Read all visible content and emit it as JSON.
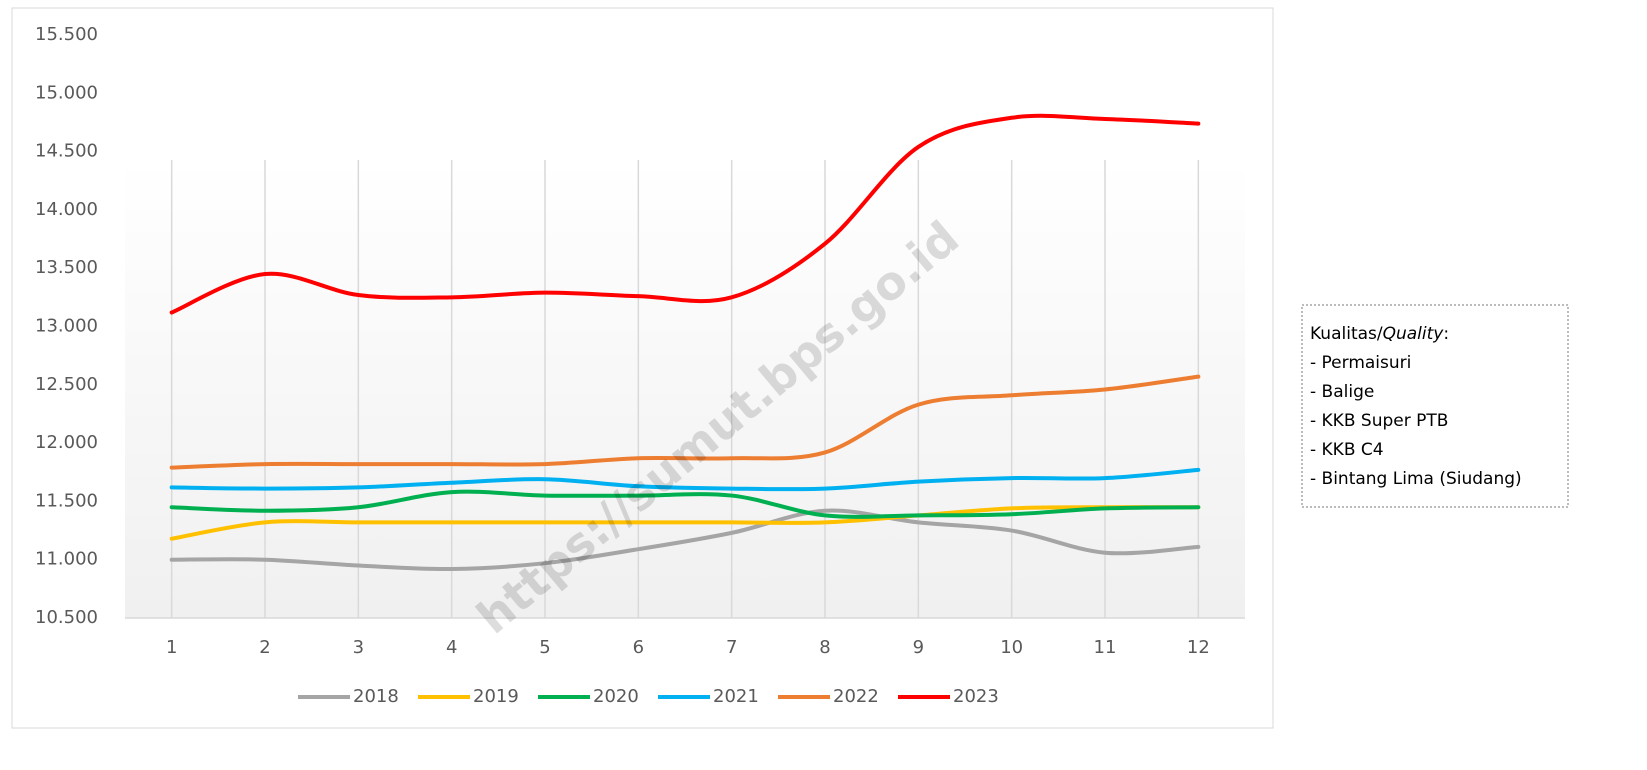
{
  "chart_data": {
    "type": "line",
    "x": [
      1,
      2,
      3,
      4,
      5,
      6,
      7,
      8,
      9,
      10,
      11,
      12
    ],
    "xlim": [
      0.5,
      12.5
    ],
    "xticks": [
      1,
      2,
      3,
      4,
      5,
      6,
      7,
      8,
      9,
      10,
      11,
      12
    ],
    "ylim": [
      10500,
      15500
    ],
    "yticks": [
      {
        "value": 10500,
        "label": "10.500"
      },
      {
        "value": 11000,
        "label": "11.000"
      },
      {
        "value": 11500,
        "label": "11.500"
      },
      {
        "value": 12000,
        "label": "12.000"
      },
      {
        "value": 12500,
        "label": "12.500"
      },
      {
        "value": 13000,
        "label": "13.000"
      },
      {
        "value": 13500,
        "label": "13.500"
      },
      {
        "value": 14000,
        "label": "14.000"
      },
      {
        "value": 14500,
        "label": "14.500"
      },
      {
        "value": 15000,
        "label": "15.000"
      },
      {
        "value": 15500,
        "label": "15.500"
      }
    ],
    "grid": "vertical",
    "smooth": true,
    "legend": "bottom",
    "series": [
      {
        "name": "2018",
        "color": "#a5a5a5",
        "values": [
          11000,
          11000,
          10950,
          10920,
          10970,
          11090,
          11230,
          11420,
          11320,
          11250,
          11060,
          11110
        ]
      },
      {
        "name": "2019",
        "color": "#ffc000",
        "values": [
          11180,
          11320,
          11320,
          11320,
          11320,
          11320,
          11320,
          11320,
          11380,
          11440,
          11450,
          11450
        ]
      },
      {
        "name": "2020",
        "color": "#00b050",
        "values": [
          11450,
          11420,
          11450,
          11580,
          11550,
          11550,
          11550,
          11380,
          11380,
          11390,
          11440,
          11450
        ]
      },
      {
        "name": "2021",
        "color": "#00b0f0",
        "values": [
          11620,
          11610,
          11620,
          11660,
          11690,
          11630,
          11610,
          11610,
          11670,
          11700,
          11700,
          11770
        ]
      },
      {
        "name": "2022",
        "color": "#ed7d31",
        "values": [
          11790,
          11820,
          11820,
          11820,
          11820,
          11870,
          11870,
          11920,
          12330,
          12410,
          12460,
          12570
        ]
      },
      {
        "name": "2023",
        "color": "#ff0000",
        "values": [
          13120,
          13450,
          13270,
          13250,
          13290,
          13260,
          13250,
          13710,
          14540,
          14790,
          14780,
          14740
        ]
      }
    ],
    "watermark": "https://sumut.bps.go.id",
    "annotation": {
      "heading": "Kualitas/",
      "heading_italic": "Quality",
      "heading_end": ":",
      "items": [
        "- Permaisuri",
        "- Balige",
        "- KKB Super PTB",
        "- KKB C4",
        "- Bintang Lima (Siudang)"
      ]
    }
  }
}
